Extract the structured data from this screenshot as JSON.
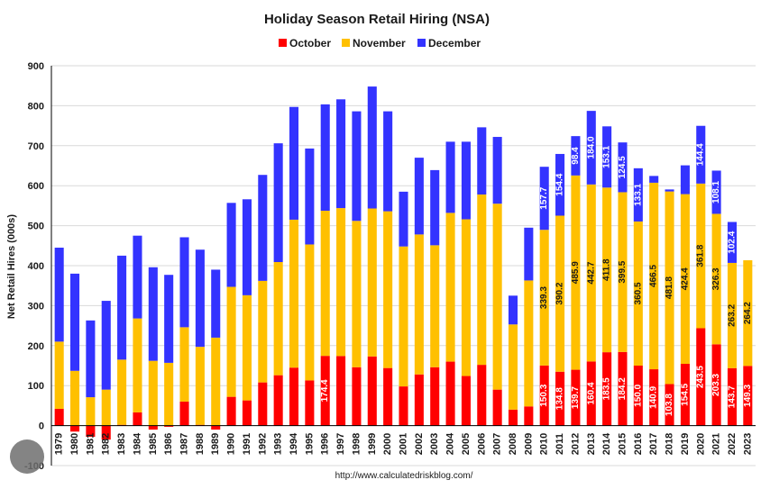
{
  "chart_data": {
    "type": "bar",
    "stacked": true,
    "title": "Holiday Season Retail Hiring (NSA)",
    "ylabel": "Net Retail Hires (000s)",
    "xlabel": "",
    "ylim": [
      -100,
      900
    ],
    "yticks": [
      -100,
      0,
      100,
      200,
      300,
      400,
      500,
      600,
      700,
      800,
      900
    ],
    "grid": true,
    "legend_position": "top",
    "source": "http://www.calculatedriskblog.com/",
    "colors": {
      "October": "#ff0000",
      "November": "#ffc000",
      "December": "#3333ff"
    },
    "categories": [
      "1979",
      "1980",
      "1981",
      "1982",
      "1983",
      "1984",
      "1985",
      "1986",
      "1987",
      "1988",
      "1989",
      "1990",
      "1991",
      "1992",
      "1993",
      "1994",
      "1995",
      "1996",
      "1997",
      "1998",
      "1999",
      "2000",
      "2001",
      "2002",
      "2003",
      "2004",
      "2005",
      "2006",
      "2007",
      "2008",
      "2009",
      "2010",
      "2011",
      "2012",
      "2013",
      "2014",
      "2015",
      "2016",
      "2017",
      "2018",
      "2019",
      "2020",
      "2021",
      "2022",
      "2023"
    ],
    "series": [
      {
        "name": "October",
        "values": [
          42,
          -15,
          -28,
          -35,
          2,
          33,
          -10,
          -3,
          60,
          2,
          -10,
          72,
          63,
          108,
          126,
          145,
          113,
          174.4,
          174,
          146,
          173,
          144,
          98,
          128,
          146,
          160,
          124,
          152,
          90,
          40,
          48,
          150.3,
          134.8,
          139.7,
          160.4,
          183.5,
          184.2,
          150.0,
          140.9,
          103.8,
          154.5,
          243.5,
          203.3,
          143.7,
          149.3
        ]
      },
      {
        "name": "November",
        "values": [
          168,
          137,
          71,
          90,
          163,
          235,
          162,
          157,
          186,
          195,
          220,
          275,
          263,
          254,
          283,
          370,
          340,
          363,
          370,
          366,
          370,
          392,
          350,
          350,
          305,
          372,
          392,
          426,
          465,
          213,
          315,
          339.3,
          390.2,
          485.9,
          442.7,
          411.8,
          399.5,
          360.5,
          466.5,
          481.8,
          424.4,
          361.8,
          326.3,
          263.2,
          264.2
        ]
      },
      {
        "name": "December",
        "values": [
          235,
          243,
          192,
          222,
          260,
          207,
          234,
          220,
          225,
          243,
          170,
          210,
          240,
          265,
          297,
          282,
          240,
          266,
          272,
          274,
          305,
          250,
          137,
          192,
          188,
          178,
          194,
          168,
          167,
          72,
          132,
          157.7,
          154.4,
          98.4,
          184.0,
          153.1,
          124.5,
          133.1,
          17,
          5,
          72,
          144.4,
          108.1,
          102.4,
          0
        ]
      }
    ],
    "data_labels": {
      "October": {
        "1996": "174.4",
        "2010": "150.3",
        "2011": "134.8",
        "2012": "139.7",
        "2013": "160.4",
        "2014": "183.5",
        "2015": "184.2",
        "2016": "150.0",
        "2017": "140.9",
        "2018": "103.8",
        "2019": "154.5",
        "2020": "243.5",
        "2021": "203.3",
        "2022": "143.7",
        "2023": "149.3"
      },
      "November": {
        "2010": "339.3",
        "2011": "390.2",
        "2012": "485.9",
        "2013": "442.7",
        "2014": "411.8",
        "2015": "399.5",
        "2016": "360.5",
        "2017": "466.5",
        "2018": "481.8",
        "2019": "424.4",
        "2020": "361.8",
        "2021": "326.3",
        "2022": "263.2",
        "2023": "264.2"
      },
      "December": {
        "2010": "157.7",
        "2011": "154.4",
        "2012": "98.4",
        "2013": "184.0",
        "2014": "153.1",
        "2015": "124.5",
        "2016": "133.1",
        "2020": "144.4",
        "2021": "108.1",
        "2022": "102.4"
      }
    }
  }
}
